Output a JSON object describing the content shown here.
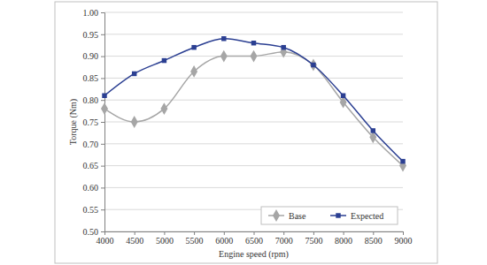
{
  "chart_data": {
    "type": "line",
    "x_label": "Engine speed (rpm)",
    "y_label": "Torque (Nm)",
    "x": [
      4000,
      4500,
      5000,
      5500,
      6000,
      6500,
      7000,
      7500,
      8000,
      8500,
      9000
    ],
    "series": [
      {
        "name": "Base",
        "color": "#a6a6a6",
        "marker": "diamond",
        "line_style": "solid",
        "values": [
          0.78,
          0.75,
          0.78,
          0.865,
          0.9,
          0.9,
          0.91,
          0.88,
          0.795,
          0.715,
          0.65
        ]
      },
      {
        "name": "Expected",
        "color": "#2b3f92",
        "marker": "square",
        "line_style": "solid",
        "values": [
          0.81,
          0.86,
          0.89,
          0.92,
          0.94,
          0.93,
          0.92,
          0.88,
          0.81,
          0.73,
          0.66
        ]
      }
    ],
    "xlim": [
      4000,
      9000
    ],
    "xticks": [
      4000,
      4500,
      5000,
      5500,
      6000,
      6500,
      7000,
      7500,
      8000,
      8500,
      9000
    ],
    "ylim": [
      0.5,
      1.0
    ],
    "yticks": [
      {
        "value": 0.5,
        "label": "0.50"
      },
      {
        "value": 0.55,
        "label": "0.55"
      },
      {
        "value": 0.6,
        "label": "0.60"
      },
      {
        "value": 0.65,
        "label": "0.65"
      },
      {
        "value": 0.7,
        "label": "0.70"
      },
      {
        "value": 0.75,
        "label": "0.75"
      },
      {
        "value": 0.8,
        "label": "0.80"
      },
      {
        "value": 0.85,
        "label": "0.85"
      },
      {
        "value": 0.9,
        "label": "0.90"
      },
      {
        "value": 0.95,
        "label": "0.95"
      },
      {
        "value": 1.0,
        "label": "1.00"
      }
    ],
    "grid": true,
    "legend": "lower right"
  }
}
